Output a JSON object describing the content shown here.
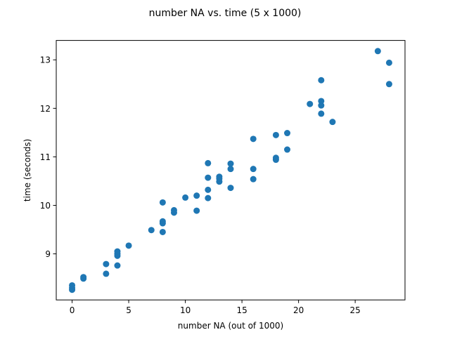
{
  "chart_data": {
    "type": "scatter",
    "title": "number NA vs. time (5 x 1000)",
    "xlabel": "number NA (out of 1000)",
    "ylabel": "time (seconds)",
    "xlim": [
      -1.4,
      29.4
    ],
    "ylim": [
      8.05,
      13.4
    ],
    "xticks": [
      0,
      5,
      10,
      15,
      20,
      25
    ],
    "xtick_labels": [
      "0",
      "5",
      "10",
      "15",
      "20",
      "25"
    ],
    "yticks": [
      9,
      10,
      11,
      12,
      13
    ],
    "ytick_labels": [
      "9",
      "10",
      "11",
      "12",
      "13"
    ],
    "grid": false,
    "marker_color": "#1f77b4",
    "points": [
      {
        "x": 0,
        "y": 8.26
      },
      {
        "x": 0,
        "y": 8.3
      },
      {
        "x": 0,
        "y": 8.35
      },
      {
        "x": 1,
        "y": 8.49
      },
      {
        "x": 1,
        "y": 8.52
      },
      {
        "x": 3,
        "y": 8.59
      },
      {
        "x": 3,
        "y": 8.79
      },
      {
        "x": 4,
        "y": 8.76
      },
      {
        "x": 4,
        "y": 8.96
      },
      {
        "x": 4,
        "y": 9.0
      },
      {
        "x": 4,
        "y": 9.05
      },
      {
        "x": 5,
        "y": 9.17
      },
      {
        "x": 7,
        "y": 9.49
      },
      {
        "x": 8,
        "y": 9.45
      },
      {
        "x": 8,
        "y": 9.63
      },
      {
        "x": 8,
        "y": 9.67
      },
      {
        "x": 8,
        "y": 10.06
      },
      {
        "x": 9,
        "y": 9.85
      },
      {
        "x": 9,
        "y": 9.9
      },
      {
        "x": 10,
        "y": 10.16
      },
      {
        "x": 11,
        "y": 9.89
      },
      {
        "x": 11,
        "y": 10.2
      },
      {
        "x": 12,
        "y": 10.15
      },
      {
        "x": 12,
        "y": 10.32
      },
      {
        "x": 12,
        "y": 10.57
      },
      {
        "x": 12,
        "y": 10.87
      },
      {
        "x": 13,
        "y": 10.49
      },
      {
        "x": 13,
        "y": 10.55
      },
      {
        "x": 13,
        "y": 10.59
      },
      {
        "x": 14,
        "y": 10.36
      },
      {
        "x": 14,
        "y": 10.75
      },
      {
        "x": 14,
        "y": 10.86
      },
      {
        "x": 16,
        "y": 10.54
      },
      {
        "x": 16,
        "y": 10.75
      },
      {
        "x": 16,
        "y": 11.37
      },
      {
        "x": 18,
        "y": 10.94
      },
      {
        "x": 18,
        "y": 10.98
      },
      {
        "x": 18,
        "y": 11.45
      },
      {
        "x": 19,
        "y": 11.15
      },
      {
        "x": 19,
        "y": 11.49
      },
      {
        "x": 21,
        "y": 12.09
      },
      {
        "x": 22,
        "y": 11.89
      },
      {
        "x": 22,
        "y": 12.06
      },
      {
        "x": 22,
        "y": 12.15
      },
      {
        "x": 22,
        "y": 12.58
      },
      {
        "x": 23,
        "y": 11.72
      },
      {
        "x": 27,
        "y": 13.18
      },
      {
        "x": 28,
        "y": 12.5
      },
      {
        "x": 28,
        "y": 12.94
      }
    ]
  }
}
